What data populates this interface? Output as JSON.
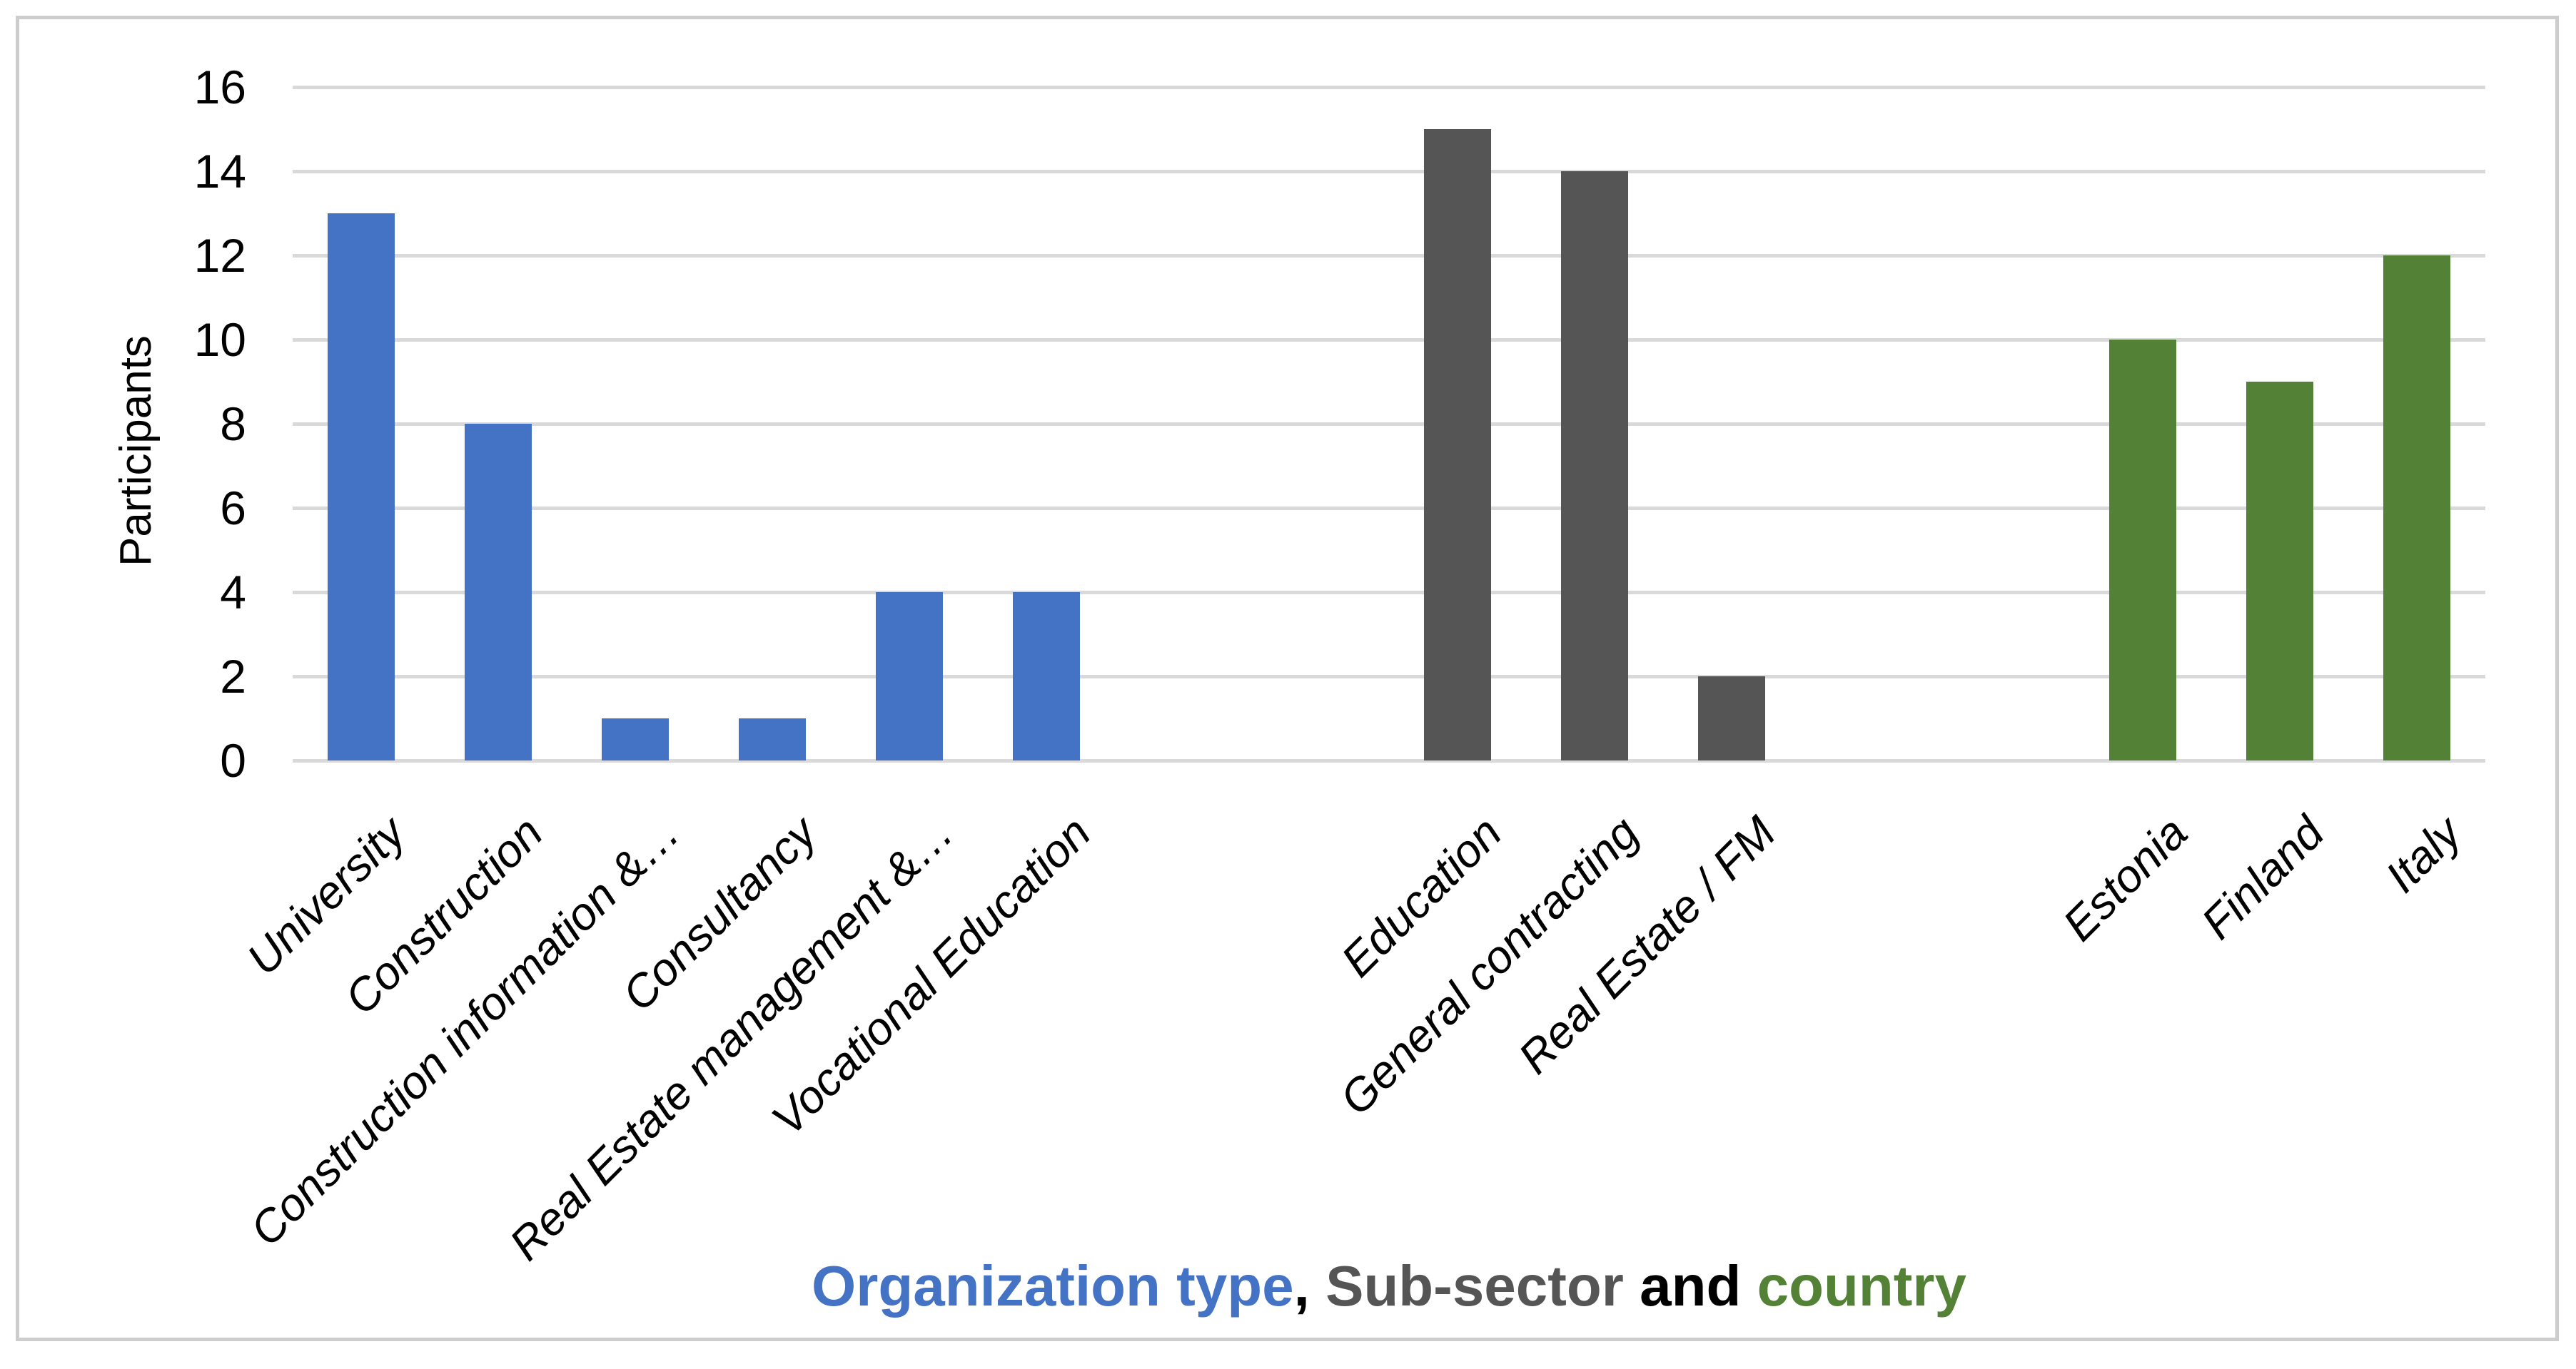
{
  "chart_data": {
    "type": "bar",
    "title": "Organization type, Sub-sector and country",
    "title_parts": [
      {
        "text": "Organization type",
        "color": "#4472C4"
      },
      {
        "text": ", ",
        "color": "#000000"
      },
      {
        "text": "Sub-sector",
        "color": "#555555"
      },
      {
        "text": " and ",
        "color": "#000000"
      },
      {
        "text": "country",
        "color": "#538135"
      }
    ],
    "ylabel": "Participants",
    "xlabel": "",
    "ylim": [
      0,
      16
    ],
    "yticks": [
      0,
      2,
      4,
      6,
      8,
      10,
      12,
      14,
      16
    ],
    "grid": true,
    "legend": false,
    "axis_slot_count": 16,
    "gridline_color": "#d9d9d9",
    "tick_label_color": "#000000",
    "series": [
      {
        "name": "Organization type",
        "color": "#4472C4",
        "start_slot": 0,
        "categories": [
          "University",
          "Construction",
          "Construction information &…",
          "Consultancy",
          "Real Estate management &…",
          "Vocational Education"
        ],
        "values": [
          13,
          8,
          1,
          1,
          4,
          4
        ]
      },
      {
        "name": "Sub-sector",
        "color": "#555555",
        "start_slot": 8,
        "categories": [
          "Education",
          "General contracting",
          "Real Estate / FM"
        ],
        "values": [
          15,
          14,
          2
        ]
      },
      {
        "name": "country",
        "color": "#538135",
        "start_slot": 13,
        "categories": [
          "Estonia",
          "Finland",
          "Italy"
        ],
        "values": [
          10,
          9,
          12
        ]
      }
    ]
  }
}
